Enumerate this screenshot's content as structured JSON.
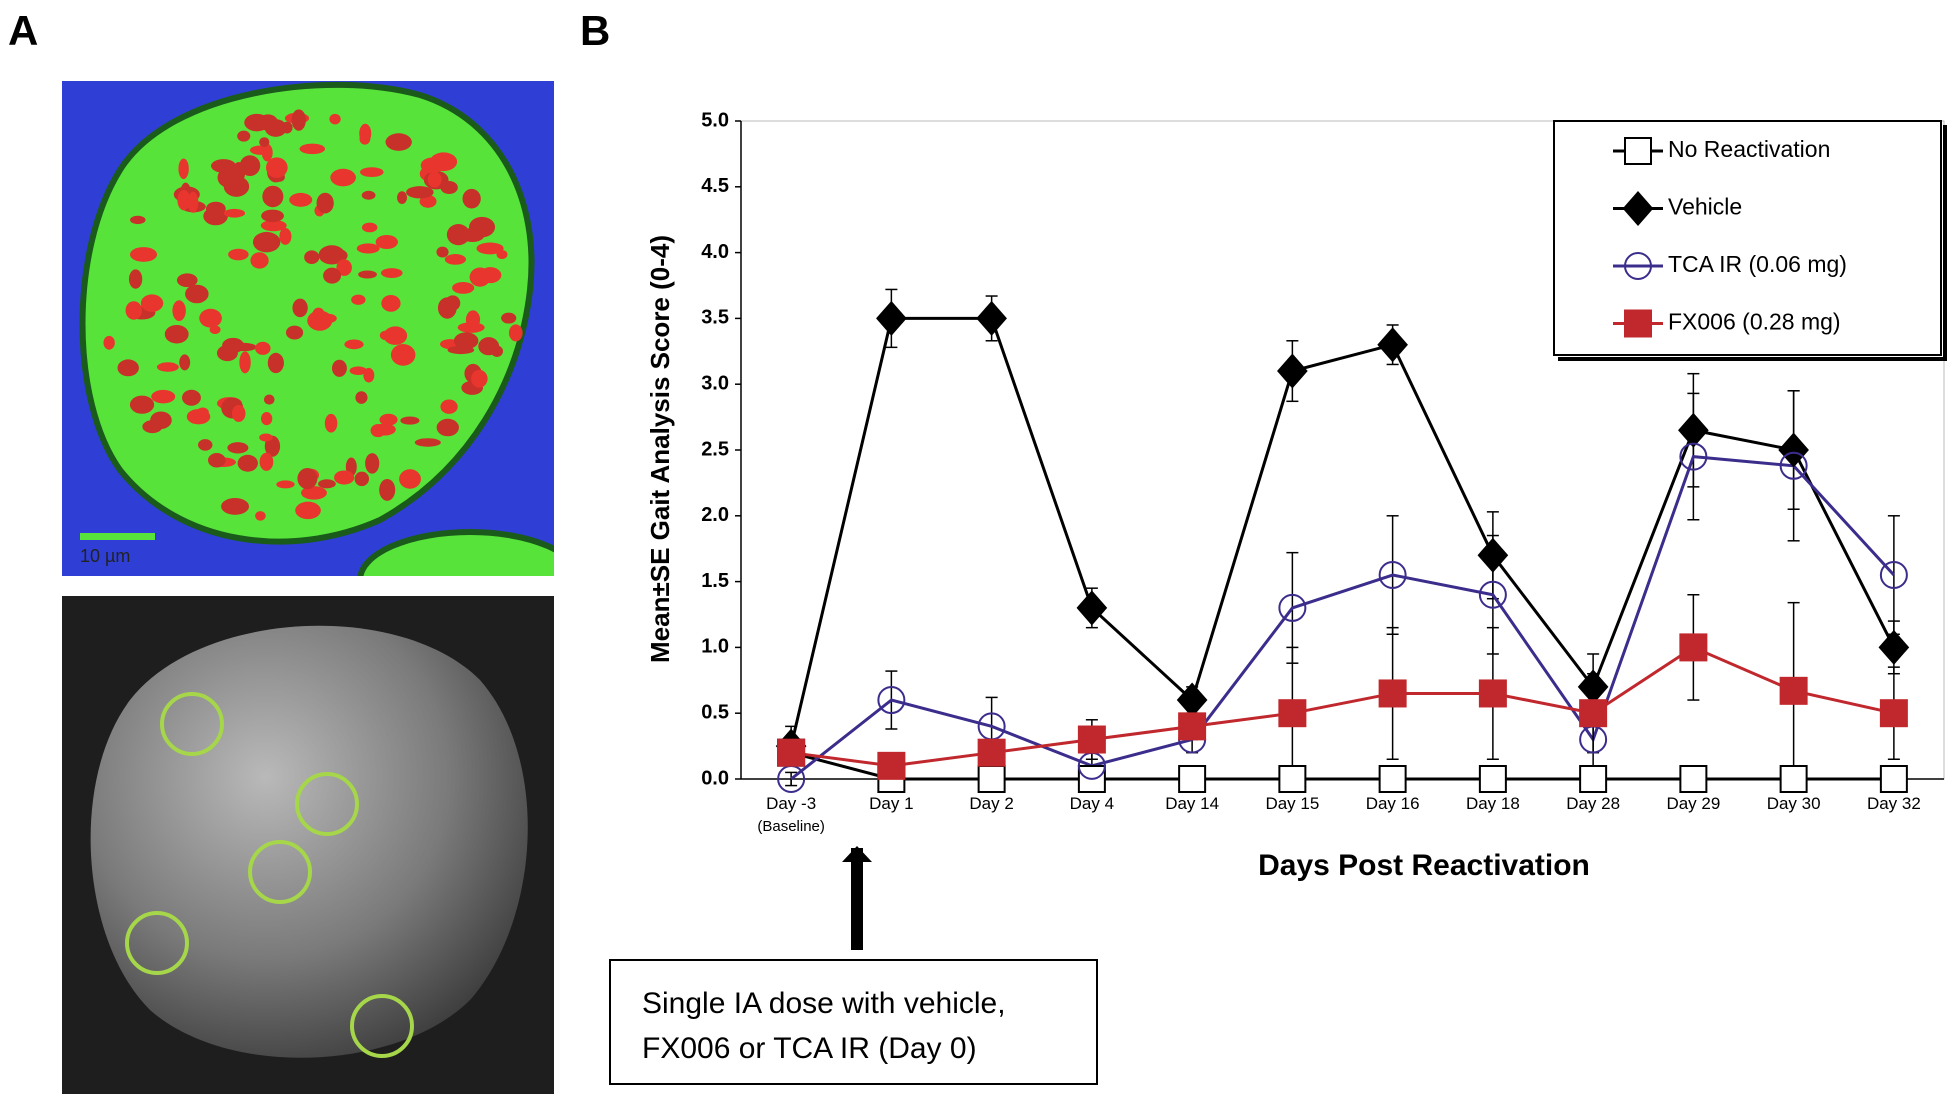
{
  "panel_labels": [
    "A",
    "B"
  ],
  "scale_bar_label": "10 µm",
  "annotation": [
    "Single IA dose with vehicle,",
    "FX006 or TCA IR (Day 0)"
  ],
  "chart_data": {
    "type": "line",
    "x_label": "Days Post Reactivation",
    "y_label": "Mean±SE Gait Analysis Score (0-4)",
    "categories": [
      "Day -3\n(Baseline)",
      "Day 1",
      "Day 2",
      "Day 4",
      "Day 14",
      "Day 15",
      "Day 16",
      "Day 18",
      "Day 28",
      "Day 29",
      "Day 30",
      "Day 32"
    ],
    "ylim": [
      0,
      5
    ],
    "yticks": [
      {
        "value": 0,
        "label": "0.0"
      },
      0.5,
      {
        "value": 1,
        "label": "1.0"
      },
      1.5,
      {
        "value": 2,
        "label": "2.0"
      },
      2.5,
      {
        "value": 3,
        "label": "3.0"
      },
      3.5,
      {
        "value": 4,
        "label": "4.0"
      },
      4.5,
      {
        "value": 5,
        "label": "5.0"
      }
    ],
    "legend": "upper right",
    "series": [
      {
        "name": "No Reactivation",
        "color": "#000000",
        "fill": "#ffffff",
        "marker": "square",
        "values": [
          0.2,
          0,
          0,
          0,
          0,
          0,
          0,
          0,
          0,
          0,
          0,
          0
        ]
      },
      {
        "name": "Vehicle",
        "color": "#000000",
        "fill": "#000000",
        "marker": "diamond",
        "values": [
          0.25,
          3.5,
          3.5,
          1.3,
          0.6,
          3.1,
          3.3,
          1.7,
          0.7,
          2.65,
          2.5,
          1.0
        ],
        "errors": [
          0.15,
          0.22,
          0.17,
          0.15,
          0.1,
          0.23,
          0.15,
          0.33,
          0.25,
          0.43,
          0.45,
          0.2
        ]
      },
      {
        "name": "TCA IR (0.06 mg)",
        "color": "#3b2d8c",
        "fill": "none",
        "marker": "circle",
        "values": [
          0,
          0.6,
          0.4,
          0.1,
          0.3,
          1.3,
          1.55,
          1.4,
          0.3,
          2.45,
          2.38,
          1.55
        ],
        "errors": [
          0.05,
          0.22,
          0.22,
          0.1,
          0.1,
          0.42,
          0.45,
          0.45,
          0.2,
          0.48,
          0.57,
          0.45
        ]
      },
      {
        "name": "FX006 (0.28 mg)",
        "color": "#c0282d",
        "fill": "#c0282d",
        "marker": "square",
        "values": [
          0.2,
          0.1,
          0.2,
          0.3,
          0.4,
          0.5,
          0.65,
          0.65,
          0.5,
          1.0,
          0.67,
          0.5
        ],
        "errors": [
          0.1,
          0.05,
          0.1,
          0.15,
          0.1,
          0.5,
          0.5,
          0.5,
          0.3,
          0.4,
          0.67,
          0.35
        ]
      }
    ]
  }
}
